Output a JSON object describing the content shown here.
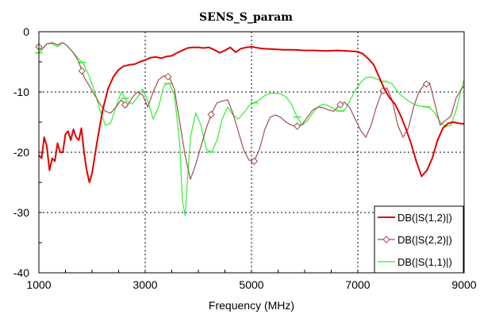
{
  "chart_data": {
    "type": "line",
    "title": "SENS_S_param",
    "xlabel": "Frequency (MHz)",
    "ylabel": "",
    "xlim": [
      1000,
      9000
    ],
    "ylim": [
      -40,
      0
    ],
    "xticks": [
      1000,
      3000,
      5000,
      7000,
      9000
    ],
    "yticks": [
      0,
      -10,
      -20,
      -30,
      -40
    ],
    "xtick_labels": [
      "1000",
      "3000",
      "5000",
      "7000",
      "9000"
    ],
    "ytick_labels": [
      "0",
      "-10",
      "-20",
      "-30",
      "-40"
    ],
    "grid": true,
    "legend_position": "bottom-right",
    "series": [
      {
        "name": "DB(|S(1,2)|)",
        "color": "#e00000",
        "marker": "none",
        "x": [
          1000,
          1050,
          1100,
          1150,
          1200,
          1250,
          1300,
          1350,
          1400,
          1450,
          1500,
          1550,
          1600,
          1650,
          1700,
          1750,
          1800,
          1850,
          1900,
          1950,
          2000,
          2100,
          2200,
          2300,
          2400,
          2500,
          2600,
          2700,
          2800,
          2900,
          3000,
          3100,
          3200,
          3300,
          3400,
          3500,
          3600,
          3700,
          3800,
          3900,
          4000,
          4100,
          4200,
          4300,
          4400,
          4500,
          4600,
          4700,
          4800,
          4900,
          5000,
          5200,
          5400,
          5600,
          5800,
          6000,
          6200,
          6400,
          6600,
          6800,
          7000,
          7100,
          7200,
          7300,
          7400,
          7500,
          7600,
          7700,
          7800,
          7900,
          8000,
          8100,
          8200,
          8300,
          8400,
          8500,
          8600,
          8700,
          8800,
          8900,
          9000
        ],
        "y": [
          -20.5,
          -21,
          -17.5,
          -19,
          -23,
          -21,
          -21.5,
          -18.5,
          -20,
          -20,
          -17,
          -16.5,
          -18,
          -16.2,
          -17.5,
          -18,
          -16,
          -20,
          -23,
          -25,
          -23.5,
          -18,
          -13,
          -9.5,
          -7.5,
          -6.3,
          -5.7,
          -5.5,
          -5.4,
          -5,
          -4.7,
          -4.3,
          -4.2,
          -4.4,
          -4.1,
          -4,
          -3.5,
          -3.1,
          -2.7,
          -2.6,
          -2.6,
          -2.7,
          -2.6,
          -3,
          -3.5,
          -3.1,
          -2.6,
          -3.4,
          -2.8,
          -2.6,
          -2.5,
          -2.8,
          -2.9,
          -3,
          -3,
          -3.1,
          -3.1,
          -3.2,
          -3.1,
          -3.2,
          -3.3,
          -3.7,
          -4.5,
          -5.5,
          -7.5,
          -9.5,
          -11,
          -12,
          -13.8,
          -16,
          -18.5,
          -21.5,
          -24,
          -23,
          -21,
          -18,
          -16,
          -15.2,
          -15,
          -15.2,
          -15.3
        ]
      },
      {
        "name": "DB(|S(2,2)|)",
        "color": "#a05050",
        "marker": "diamond",
        "x": [
          1000,
          1050,
          1150,
          1250,
          1350,
          1450,
          1550,
          1650,
          1750,
          1850,
          1950,
          2050,
          2150,
          2250,
          2350,
          2450,
          2550,
          2650,
          2750,
          2850,
          2950,
          3050,
          3150,
          3250,
          3350,
          3450,
          3550,
          3650,
          3750,
          3850,
          3950,
          4050,
          4150,
          4250,
          4350,
          4450,
          4550,
          4650,
          4750,
          4850,
          4950,
          5050,
          5150,
          5250,
          5350,
          5450,
          5550,
          5650,
          5750,
          5850,
          5950,
          6050,
          6150,
          6250,
          6350,
          6450,
          6550,
          6650,
          6750,
          6850,
          6950,
          7050,
          7150,
          7250,
          7350,
          7450,
          7550,
          7650,
          7750,
          7850,
          7950,
          8050,
          8150,
          8250,
          8350,
          8450,
          8550,
          8650,
          8750,
          8850,
          8950,
          9000
        ],
        "y": [
          -2.5,
          -3,
          -2,
          -1.8,
          -2.2,
          -1.8,
          -2.5,
          -3.5,
          -5,
          -7.5,
          -9,
          -10.5,
          -12,
          -13.2,
          -13.5,
          -12.5,
          -11.3,
          -12.5,
          -11,
          -10,
          -10.5,
          -12.5,
          -10,
          -8,
          -7.3,
          -7.5,
          -9.5,
          -15,
          -20.5,
          -24.5,
          -22,
          -19,
          -16,
          -13.5,
          -11.8,
          -11.5,
          -11.3,
          -13.5,
          -16.5,
          -19.5,
          -21.3,
          -21.5,
          -19.5,
          -16.2,
          -14.2,
          -13.8,
          -14.2,
          -15,
          -15.5,
          -15.7,
          -15.4,
          -14.2,
          -13,
          -12.5,
          -12.6,
          -13,
          -13.2,
          -12.2,
          -11.7,
          -12.6,
          -14.5,
          -16.3,
          -17.5,
          -15.5,
          -12.5,
          -10,
          -9.3,
          -11.5,
          -15.5,
          -17.5,
          -16,
          -12.5,
          -10,
          -8.8,
          -8.5,
          -12,
          -15.5,
          -14.7,
          -14,
          -11,
          -9.5,
          -9
        ]
      },
      {
        "name": "DB(|S(1,1)|)",
        "color": "#33ee33",
        "marker": "line",
        "x": [
          1000,
          1050,
          1150,
          1250,
          1350,
          1450,
          1550,
          1650,
          1750,
          1850,
          1950,
          2050,
          2150,
          2250,
          2350,
          2450,
          2550,
          2650,
          2750,
          2850,
          2950,
          3050,
          3150,
          3250,
          3350,
          3450,
          3550,
          3650,
          3700,
          3750,
          3800,
          3850,
          3950,
          4050,
          4150,
          4250,
          4350,
          4450,
          4550,
          4650,
          4750,
          4850,
          4950,
          5050,
          5150,
          5250,
          5350,
          5450,
          5550,
          5650,
          5750,
          5850,
          5950,
          6050,
          6150,
          6250,
          6350,
          6450,
          6550,
          6650,
          6750,
          6850,
          6950,
          7050,
          7150,
          7250,
          7350,
          7450,
          7550,
          7650,
          7750,
          7850,
          7950,
          8050,
          8150,
          8250,
          8350,
          8450,
          8550,
          8650,
          8750,
          8850,
          8950,
          9000
        ],
        "y": [
          -3.5,
          -3,
          -2,
          -2,
          -2.5,
          -1.8,
          -2.5,
          -3.5,
          -4.5,
          -5.5,
          -7.5,
          -10,
          -13,
          -15.5,
          -15.2,
          -12.5,
          -10,
          -11.5,
          -12,
          -11,
          -9.5,
          -11.5,
          -14.5,
          -12.5,
          -9,
          -8.5,
          -10.5,
          -18.5,
          -28,
          -30.5,
          -24,
          -17.5,
          -13.5,
          -15.5,
          -19.5,
          -20,
          -18,
          -14.5,
          -12.5,
          -13.8,
          -14.5,
          -13.5,
          -12.3,
          -11.8,
          -11.3,
          -10.6,
          -10.2,
          -10.2,
          -10.3,
          -10.8,
          -12,
          -14,
          -15.5,
          -14.8,
          -13.5,
          -12.5,
          -12,
          -12.3,
          -12.8,
          -13.2,
          -13,
          -11.5,
          -9.7,
          -8.5,
          -7.6,
          -7.5,
          -7.8,
          -8.2,
          -8.3,
          -8.7,
          -10,
          -10.8,
          -11.5,
          -12,
          -12.3,
          -12.4,
          -12.6,
          -13.5,
          -15,
          -15.8,
          -15.5,
          -13,
          -9.5,
          -8
        ]
      }
    ]
  }
}
